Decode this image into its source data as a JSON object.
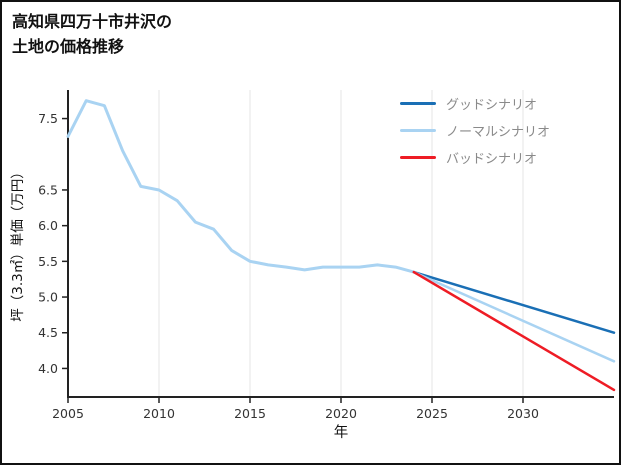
{
  "page": {
    "background": "#ffffff",
    "border_color": "#111111"
  },
  "header": {
    "title_line1": "高知県四万十市井沢の",
    "title_line2": "土地の価格推移"
  },
  "chart_data": {
    "type": "line",
    "title": "高知県四万十市井沢の土地の価格推移",
    "xlabel": "年",
    "ylabel": "坪（3.3㎡）単価（万円）",
    "xlim": [
      2005,
      2035
    ],
    "ylim": [
      3.6,
      7.9
    ],
    "xticks": [
      2005,
      2010,
      2015,
      2020,
      2025,
      2030
    ],
    "yticks": [
      4.0,
      4.5,
      5.0,
      5.5,
      6.0,
      6.5,
      7.5
    ],
    "grid": "vertical-only",
    "axis_color": "#222222",
    "grid_color": "#e6e6e6",
    "tick_label_color": "#333333",
    "legend_position": "top-right",
    "legend_text_color": "#8a8a8a",
    "series": [
      {
        "id": "actual",
        "label": "",
        "in_legend": false,
        "color": "#a9d3f2",
        "width": 3,
        "x": [
          2005,
          2006,
          2007,
          2008,
          2009,
          2010,
          2011,
          2012,
          2013,
          2014,
          2015,
          2016,
          2017,
          2018,
          2019,
          2020,
          2021,
          2022,
          2023,
          2024
        ],
        "y": [
          7.25,
          7.75,
          7.68,
          7.05,
          6.55,
          6.5,
          6.35,
          6.05,
          5.95,
          5.65,
          5.5,
          5.45,
          5.42,
          5.38,
          5.42,
          5.42,
          5.42,
          5.45,
          5.42,
          5.35
        ]
      },
      {
        "id": "good",
        "label": "グッドシナリオ",
        "in_legend": true,
        "color": "#1a6fb5",
        "width": 2.5,
        "x": [
          2024,
          2035
        ],
        "y": [
          5.35,
          4.5
        ]
      },
      {
        "id": "normal",
        "label": "ノーマルシナリオ",
        "in_legend": true,
        "color": "#a9d3f2",
        "width": 2.5,
        "x": [
          2024,
          2035
        ],
        "y": [
          5.35,
          4.1
        ]
      },
      {
        "id": "bad",
        "label": "バッドシナリオ",
        "in_legend": true,
        "color": "#ee1c25",
        "width": 2.5,
        "x": [
          2024,
          2035
        ],
        "y": [
          5.35,
          3.7
        ]
      }
    ]
  }
}
